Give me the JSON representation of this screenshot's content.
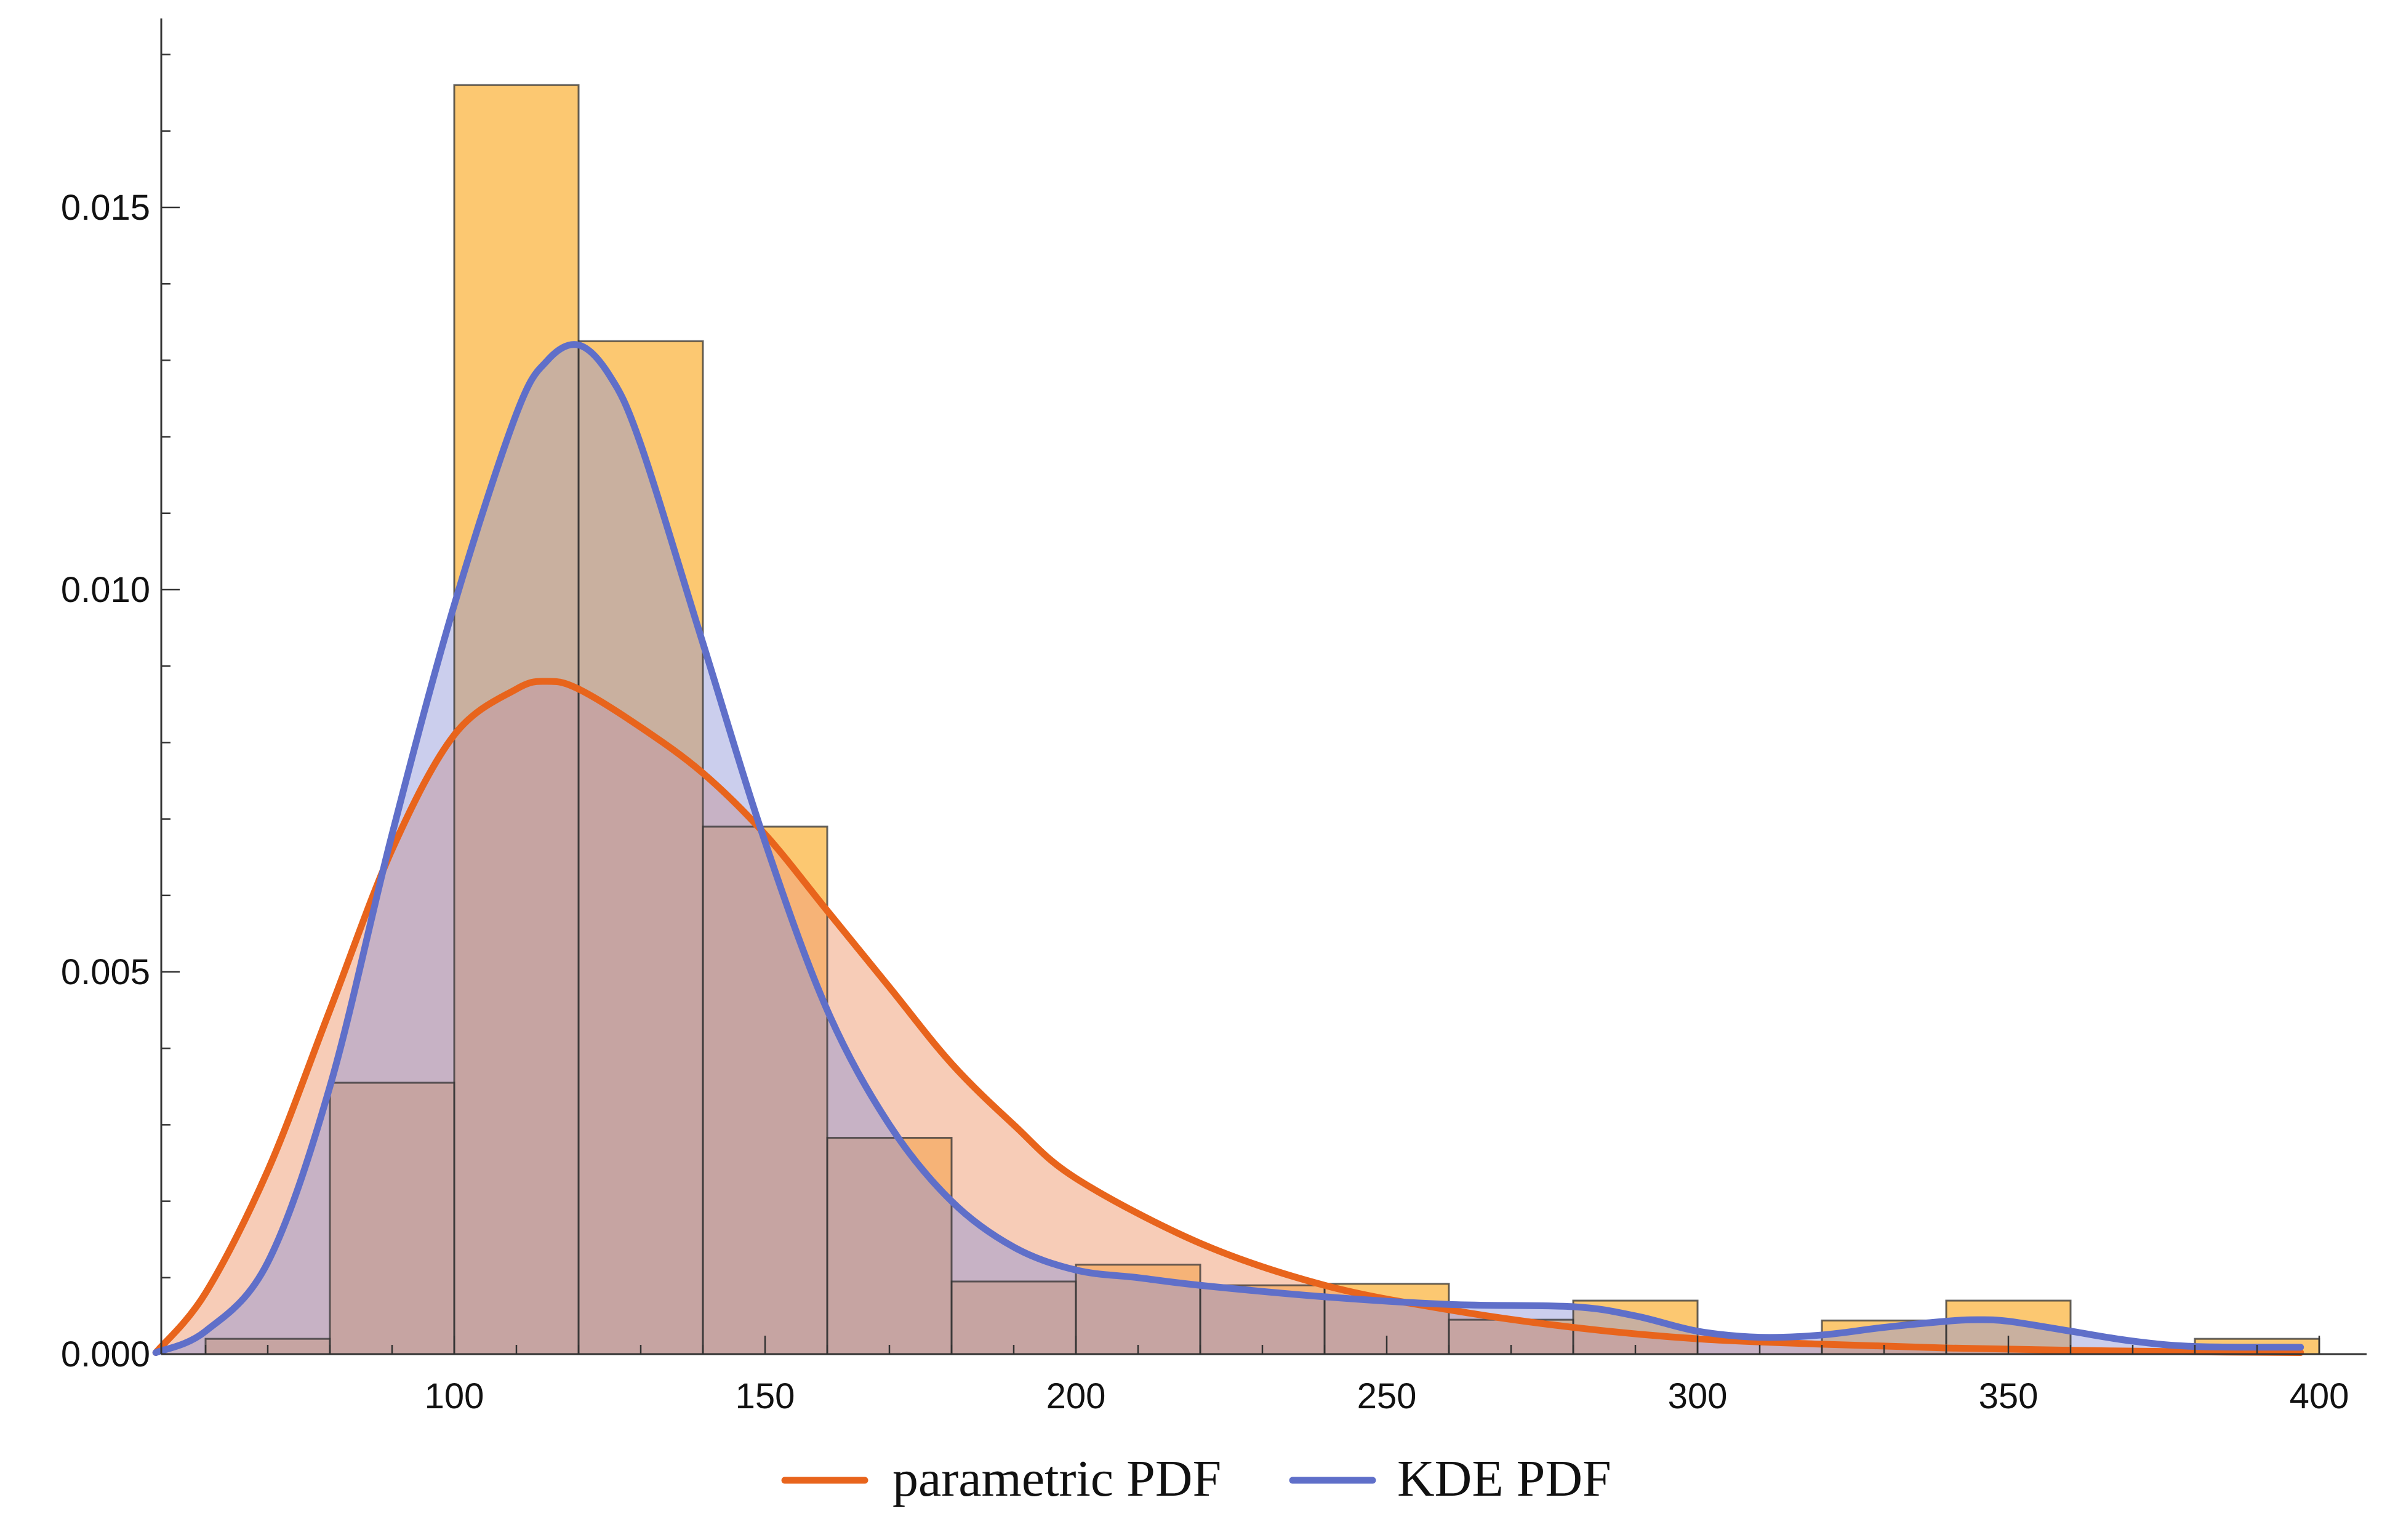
{
  "chart_data": {
    "type": "bar",
    "title": "",
    "xlabel": "",
    "ylabel": "",
    "xlim": [
      52,
      405
    ],
    "ylim": [
      0,
      0.0175
    ],
    "xticks": [
      100,
      150,
      200,
      250,
      300,
      350,
      400
    ],
    "xtick_labels": [
      "100",
      "150",
      "200",
      "250",
      "300",
      "350",
      "400"
    ],
    "yticks": [
      0.0,
      0.005,
      0.01,
      0.015
    ],
    "ytick_labels": [
      "0.000",
      "0.005",
      "0.010",
      "0.015"
    ],
    "histogram": {
      "bins": [
        {
          "x0": 60,
          "x1": 80,
          "density": 0.0002
        },
        {
          "x0": 80,
          "x1": 100,
          "density": 0.00355
        },
        {
          "x0": 100,
          "x1": 120,
          "density": 0.0166
        },
        {
          "x0": 120,
          "x1": 140,
          "density": 0.01325
        },
        {
          "x0": 140,
          "x1": 160,
          "density": 0.0069
        },
        {
          "x0": 160,
          "x1": 180,
          "density": 0.00283
        },
        {
          "x0": 180,
          "x1": 200,
          "density": 0.00095
        },
        {
          "x0": 200,
          "x1": 220,
          "density": 0.00117
        },
        {
          "x0": 220,
          "x1": 240,
          "density": 0.0009
        },
        {
          "x0": 240,
          "x1": 260,
          "density": 0.00092
        },
        {
          "x0": 260,
          "x1": 280,
          "density": 0.00045
        },
        {
          "x0": 280,
          "x1": 300,
          "density": 0.0007
        },
        {
          "x0": 300,
          "x1": 320,
          "density": 0.0
        },
        {
          "x0": 320,
          "x1": 340,
          "density": 0.00044
        },
        {
          "x0": 340,
          "x1": 360,
          "density": 0.0007
        },
        {
          "x0": 360,
          "x1": 380,
          "density": 0.0
        },
        {
          "x0": 380,
          "x1": 400,
          "density": 0.0002
        }
      ],
      "fill_color": "#fcc871",
      "edge_color": "#333333"
    },
    "series": [
      {
        "name": "parametric PDF",
        "color": "#e8641c",
        "fill_color": "#f0a27c",
        "x": [
          52,
          60,
          70,
          80,
          90,
          100,
          110,
          115,
          120,
          130,
          140,
          150,
          160,
          170,
          180,
          190,
          200,
          220,
          240,
          260,
          280,
          300,
          320,
          340,
          360,
          380,
          397
        ],
        "values": [
          2e-05,
          0.0008,
          0.0024,
          0.0045,
          0.0066,
          0.0081,
          0.0087,
          0.0088,
          0.0087,
          0.0082,
          0.0076,
          0.0068,
          0.0058,
          0.0048,
          0.0038,
          0.003,
          0.0023,
          0.00145,
          0.0009,
          0.00058,
          0.00035,
          0.0002,
          0.00013,
          8e-05,
          5e-05,
          3e-05,
          2e-05
        ]
      },
      {
        "name": "KDE PDF",
        "color": "#5f6fc9",
        "fill_color": "#8b92d8",
        "x": [
          52,
          60,
          70,
          80,
          90,
          100,
          110,
          115,
          120,
          125,
          130,
          140,
          150,
          160,
          170,
          180,
          190,
          200,
          210,
          220,
          240,
          260,
          280,
          290,
          300,
          310,
          320,
          330,
          340,
          345,
          350,
          360,
          370,
          380,
          397
        ],
        "values": [
          2e-05,
          0.0003,
          0.0012,
          0.0035,
          0.0068,
          0.0098,
          0.0123,
          0.013,
          0.0132,
          0.0128,
          0.0119,
          0.0093,
          0.0067,
          0.0045,
          0.003,
          0.002,
          0.0014,
          0.0011,
          0.001,
          0.0009,
          0.00075,
          0.00065,
          0.00062,
          0.0005,
          0.0003,
          0.00022,
          0.00025,
          0.00035,
          0.00043,
          0.00045,
          0.00043,
          0.0003,
          0.00017,
          0.0001,
          9e-05
        ]
      }
    ],
    "legend": {
      "position": "bottom-center",
      "entries": [
        {
          "label": "parametric PDF",
          "color": "#e8641c"
        },
        {
          "label": "KDE PDF",
          "color": "#5f6fc9"
        }
      ]
    },
    "grid": false
  }
}
